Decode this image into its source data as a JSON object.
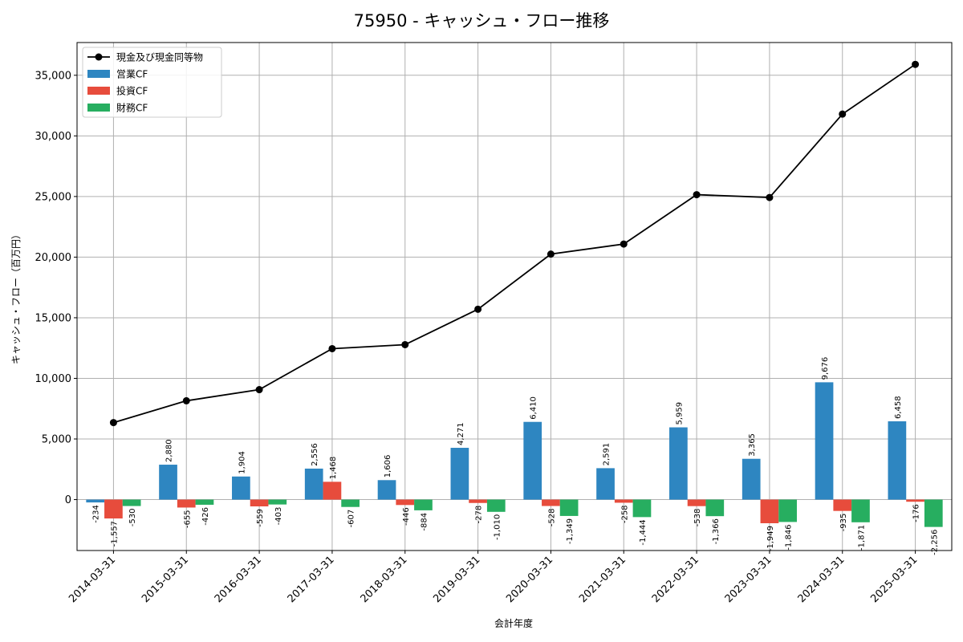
{
  "chart_data": {
    "type": "bar",
    "title": "75950 - キャッシュ・フロー推移",
    "xlabel": "会計年度",
    "ylabel": "キャッシュ・フロー（百万円）",
    "categories": [
      "2014-03-31",
      "2015-03-31",
      "2016-03-31",
      "2017-03-31",
      "2018-03-31",
      "2019-03-31",
      "2020-03-31",
      "2021-03-31",
      "2022-03-31",
      "2023-03-31",
      "2024-03-31",
      "2025-03-31"
    ],
    "ylim": [
      -4200,
      37700
    ],
    "yticks": [
      0,
      5000,
      10000,
      15000,
      20000,
      25000,
      30000,
      35000
    ],
    "ytick_labels": [
      "0",
      "5,000",
      "10,000",
      "15,000",
      "20,000",
      "25,000",
      "30,000",
      "35,000"
    ],
    "grid": true,
    "legend": "top-left",
    "series": [
      {
        "name": "営業CF",
        "kind": "bar",
        "color": "#2e86c1",
        "values": [
          -234,
          2880,
          1904,
          2556,
          1606,
          4271,
          6410,
          2591,
          5959,
          3365,
          9676,
          6458
        ],
        "labels": [
          "-234",
          "2,880",
          "1,904",
          "2,556",
          "1,606",
          "4,271",
          "6,410",
          "2,591",
          "5,959",
          "3,365",
          "9,676",
          "6,458"
        ]
      },
      {
        "name": "投資CF",
        "kind": "bar",
        "color": "#e74c3c",
        "values": [
          -1557,
          -655,
          -559,
          1468,
          -446,
          -278,
          -528,
          -258,
          -538,
          -1949,
          -935,
          -176
        ],
        "labels": [
          "-1,557",
          "-655",
          "-559",
          "1,468",
          "-446",
          "-278",
          "-528",
          "-258",
          "-538",
          "-1,949",
          "-935",
          "-176"
        ]
      },
      {
        "name": "財務CF",
        "kind": "bar",
        "color": "#27ae60",
        "values": [
          -530,
          -426,
          -403,
          -607,
          -884,
          -1010,
          -1349,
          -1444,
          -1366,
          -1846,
          -1871,
          -2256
        ],
        "labels": [
          "-530",
          "-426",
          "-403",
          "-607",
          "-884",
          "-1,010",
          "-1,349",
          "-1,444",
          "-1,366",
          "-1,846",
          "-1,871",
          "-2,256"
        ]
      },
      {
        "name": "現金及び現金同等物",
        "kind": "line",
        "color": "#000000",
        "values": [
          6350,
          8150,
          9070,
          12450,
          12780,
          15700,
          20250,
          21080,
          25150,
          24920,
          31800,
          35900
        ]
      }
    ]
  }
}
